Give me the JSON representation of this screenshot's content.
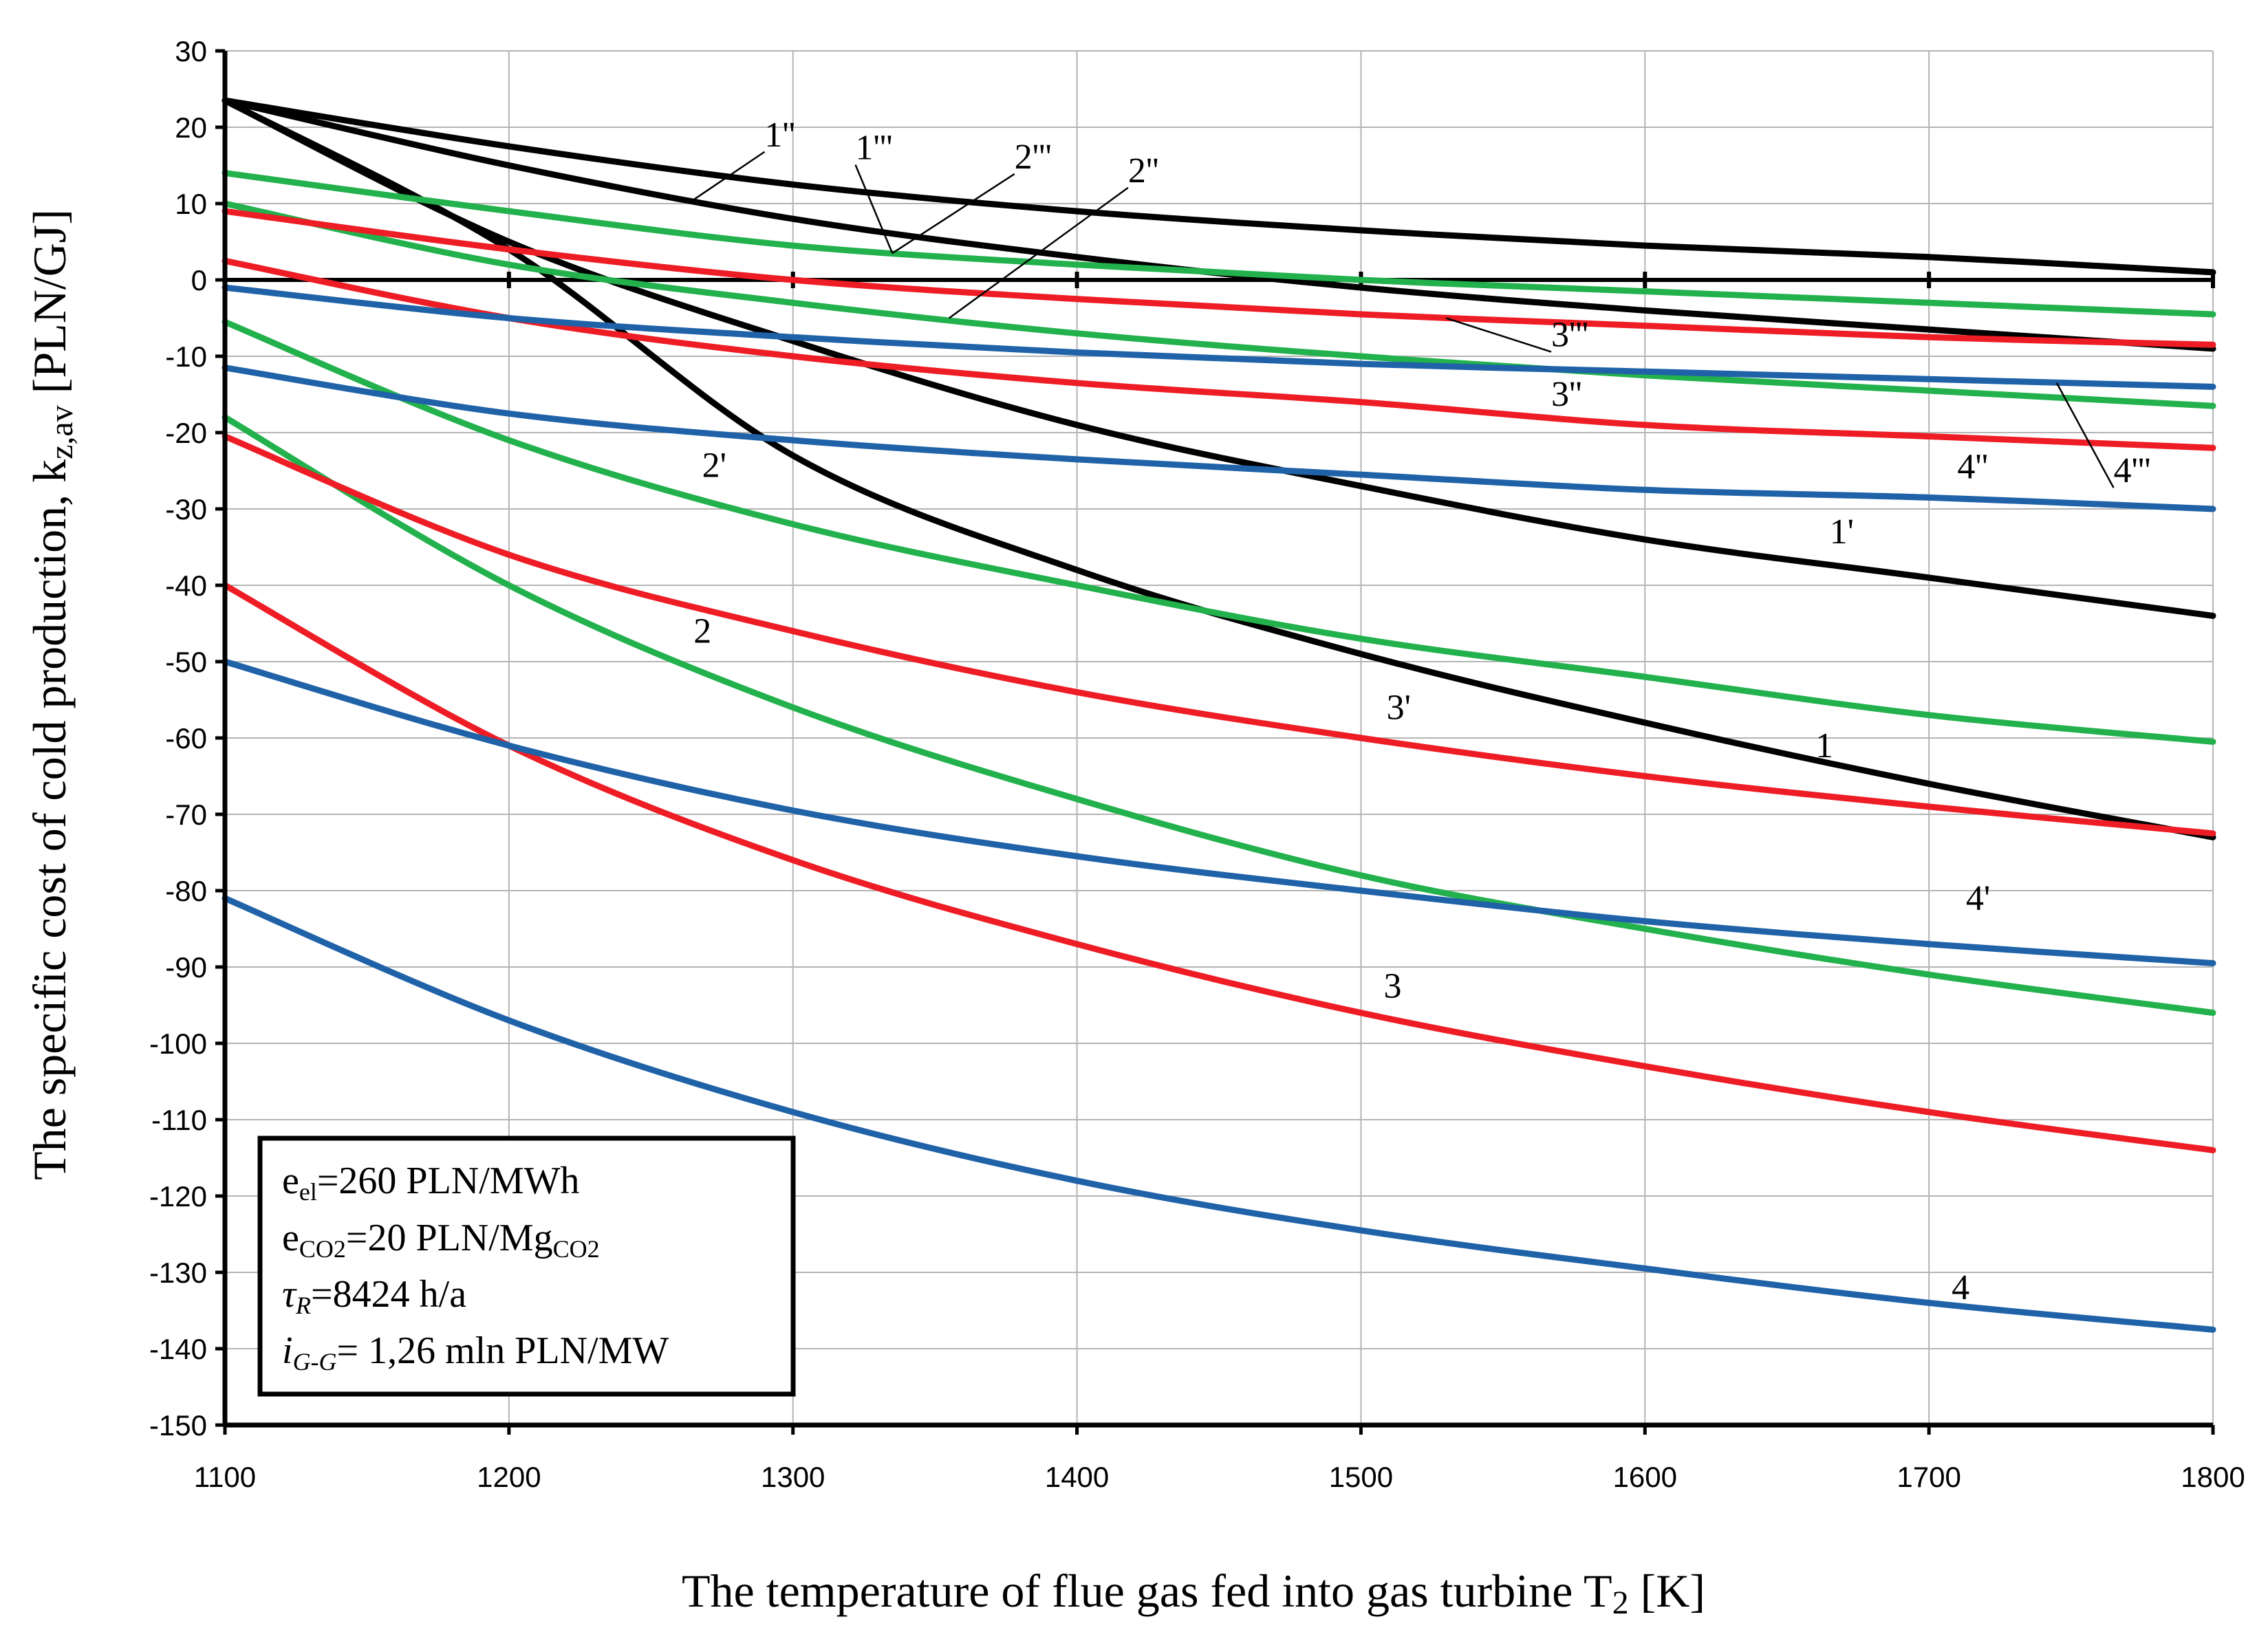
{
  "chart_data": {
    "type": "line",
    "xlabel": "The temperature of flue gas fed into gas turbine T",
    "xlabel_sub": "2",
    "xlabel_unit": "[K]",
    "ylabel": "The specific cost of cold production, k",
    "ylabel_sub": "z,av",
    "ylabel_unit": "[PLN/GJ]",
    "xlim": [
      1100,
      1800
    ],
    "ylim": [
      -150,
      30
    ],
    "xticks": [
      1100,
      1200,
      1300,
      1400,
      1500,
      1600,
      1700,
      1800
    ],
    "yticks": [
      30,
      20,
      10,
      0,
      -10,
      -20,
      -30,
      -40,
      -50,
      -60,
      -70,
      -80,
      -90,
      -100,
      -110,
      -120,
      -130,
      -140,
      -150
    ],
    "grid": true,
    "x": [
      1100,
      1200,
      1300,
      1400,
      1500,
      1600,
      1700,
      1800
    ],
    "series": [
      {
        "name": "1",
        "color": "#000000",
        "values": [
          23.5,
          4,
          -23,
          -38,
          -49,
          -58,
          -66,
          -73
        ]
      },
      {
        "name": "1'",
        "color": "#000000",
        "values": [
          23.5,
          5,
          -8,
          -19,
          -27,
          -34,
          -39,
          -44
        ]
      },
      {
        "name": "1''",
        "color": "#000000",
        "values": [
          23.5,
          17.5,
          12.5,
          9,
          6.5,
          4.5,
          3,
          1
        ]
      },
      {
        "name": "1'''",
        "color": "#000000",
        "values": [
          23.5,
          15,
          8,
          3,
          -1,
          -4,
          -6.5,
          -9
        ]
      },
      {
        "name": "2",
        "color": "#22b14c",
        "values": [
          -18,
          -40,
          -56,
          -68,
          -78,
          -85,
          -91,
          -96
        ]
      },
      {
        "name": "2'",
        "color": "#22b14c",
        "values": [
          -5.5,
          -21,
          -32,
          -40,
          -47,
          -52,
          -57,
          -60.5
        ]
      },
      {
        "name": "2''",
        "color": "#22b14c",
        "values": [
          10,
          2,
          -3,
          -7,
          -10,
          -12.5,
          -14.5,
          -16.5
        ]
      },
      {
        "name": "2'''",
        "color": "#22b14c",
        "values": [
          14,
          9,
          4.5,
          2,
          0,
          -1.5,
          -3,
          -4.5
        ]
      },
      {
        "name": "3",
        "color": "#ee1c24",
        "values": [
          -40,
          -61,
          -76,
          -87,
          -96,
          -103,
          -109,
          -114
        ]
      },
      {
        "name": "3'",
        "color": "#ee1c24",
        "values": [
          -20.5,
          -36,
          -46,
          -54,
          -60,
          -65,
          -69,
          -72.5
        ]
      },
      {
        "name": "3''",
        "color": "#ee1c24",
        "values": [
          2.5,
          -5,
          -10,
          -13.5,
          -16,
          -19,
          -20.5,
          -22
        ]
      },
      {
        "name": "3'''",
        "color": "#ee1c24",
        "values": [
          9,
          4,
          0,
          -2.5,
          -4.5,
          -6,
          -7.5,
          -8.5
        ]
      },
      {
        "name": "4",
        "color": "#1f62a8",
        "values": [
          -81,
          -97,
          -109,
          -118,
          -124.5,
          -129.5,
          -134,
          -137.5
        ]
      },
      {
        "name": "4'",
        "color": "#1f62a8",
        "values": [
          -50,
          -61,
          -69.5,
          -75.5,
          -80,
          -84,
          -87,
          -89.5
        ]
      },
      {
        "name": "4''",
        "color": "#1f62a8",
        "values": [
          -11.5,
          -17.5,
          -21,
          -23.5,
          -25.5,
          -27.5,
          -28.5,
          -30
        ]
      },
      {
        "name": "4'''",
        "color": "#1f62a8",
        "values": [
          -1,
          -5,
          -7.5,
          -9.5,
          -11,
          -12,
          -13,
          -14
        ]
      }
    ],
    "curve_labels": [
      {
        "text": "1",
        "at": [
          1660,
          -62.5
        ]
      },
      {
        "text": "1'",
        "at": [
          1665,
          -34.5
        ]
      },
      {
        "text": "1''",
        "at": [
          1290,
          17.5
        ],
        "leader_to": [
          1265,
          10.5
        ]
      },
      {
        "text": "1'''",
        "at": [
          1322,
          15.8
        ],
        "leader_to": [
          1335,
          3.5
        ]
      },
      {
        "text": "2",
        "at": [
          1265,
          -47.5
        ]
      },
      {
        "text": "2'",
        "at": [
          1268,
          -25.8
        ]
      },
      {
        "text": "2''",
        "at": [
          1418,
          12.8
        ],
        "leader_to": [
          1355,
          -5
        ]
      },
      {
        "text": "2'''",
        "at": [
          1378,
          14.6
        ],
        "leader_to": [
          1335,
          3.5
        ]
      },
      {
        "text": "3",
        "at": [
          1508,
          -94
        ]
      },
      {
        "text": "3'",
        "at": [
          1509,
          -57.5
        ]
      },
      {
        "text": "3''",
        "at": [
          1567,
          -16.5
        ]
      },
      {
        "text": "3'''",
        "at": [
          1567,
          -8.7
        ],
        "leader_to": [
          1530,
          -5
        ]
      },
      {
        "text": "4",
        "at": [
          1708,
          -133.5
        ]
      },
      {
        "text": "4'",
        "at": [
          1713,
          -82.5
        ]
      },
      {
        "text": "4''",
        "at": [
          1710,
          -26
        ]
      },
      {
        "text": "4'''",
        "at": [
          1765,
          -26.5
        ],
        "leader_to": [
          1745,
          -13.5
        ]
      }
    ]
  },
  "legend": {
    "line1_main": "e",
    "line1_sub": "el",
    "line1_rest": "=260 PLN/MWh",
    "line2_main": "e",
    "line2_sub": "CO2",
    "line2_rest": "=20 PLN/Mg",
    "line2_sub2": "CO2",
    "line3_main": "τ",
    "line3_sub": "R",
    "line3_rest": "=8424 h/a",
    "line4_main": "i",
    "line4_sub": "G-G",
    "line4_rest": "= 1,26 mln PLN/MW"
  }
}
